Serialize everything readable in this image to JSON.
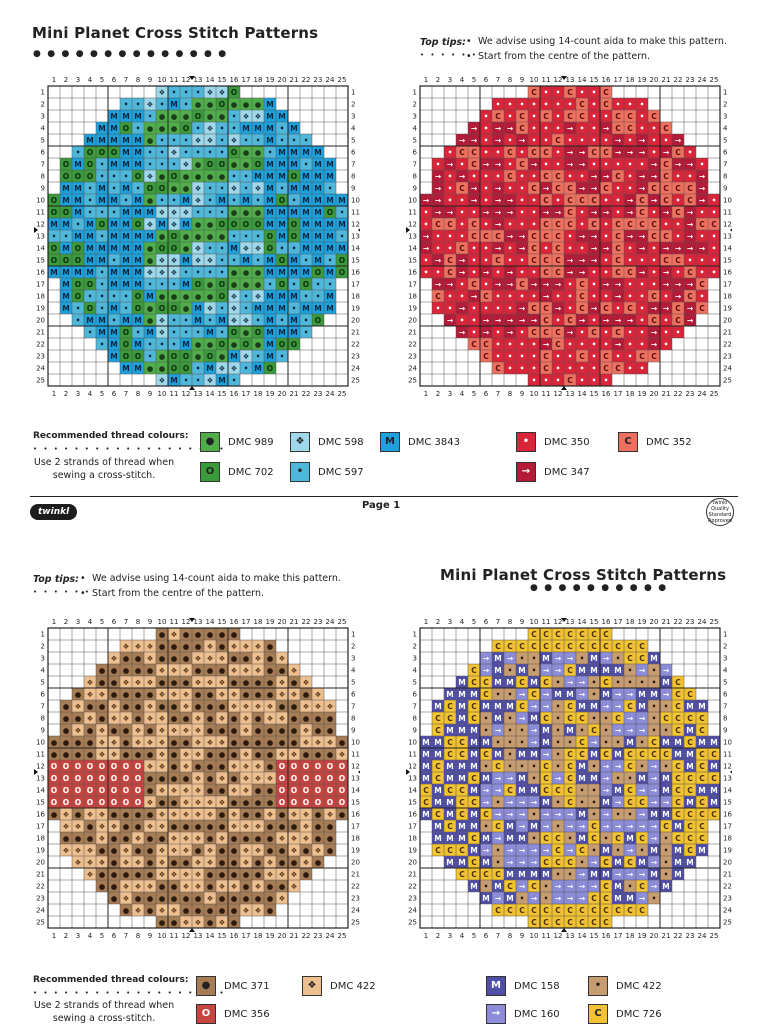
{
  "page1": {
    "title": "Mini Planet Cross Stitch Patterns",
    "tips": {
      "label": "Top tips:",
      "line1": "We advise using 14-count aida to make this pattern.",
      "line2": "Start from the centre of the pattern."
    },
    "earth_legend": {
      "heading": "Recommended thread colours:",
      "note": "Use 2 strands of thread when sewing a cross-stitch.",
      "items": [
        {
          "label": "DMC 989",
          "symbol": "●",
          "color": "#4fae4a"
        },
        {
          "label": "DMC 598",
          "symbol": "❖",
          "color": "#9fd8ea"
        },
        {
          "label": "DMC 3843",
          "symbol": "M",
          "color": "#1da1dc"
        },
        {
          "label": "DMC 702",
          "symbol": "O",
          "color": "#3a9a3c"
        },
        {
          "label": "DMC 597",
          "symbol": "•",
          "color": "#4fb7d9"
        }
      ]
    },
    "mars_legend": {
      "items": [
        {
          "label": "DMC 350",
          "symbol": "•",
          "color": "#d9253a"
        },
        {
          "label": "DMC 352",
          "symbol": "C",
          "color": "#f07060"
        },
        {
          "label": "DMC 347",
          "symbol": "→",
          "color": "#b31b36"
        }
      ]
    },
    "page_label": "Page 1",
    "logo": "twinkl",
    "badge": "twinkl Quality Standard Approved"
  },
  "page2": {
    "title": "Mini Planet Cross Stitch Patterns",
    "tips": {
      "label": "Top tips:",
      "line1": "We advise using 14-count aida to make this pattern.",
      "line2": "Start from the centre of the pattern."
    },
    "brown_legend": {
      "heading": "Recommended thread colours:",
      "note": "Use 2 strands of thread when sewing a cross-stitch.",
      "items": [
        {
          "label": "DMC 371",
          "symbol": "●",
          "color": "#a67c55"
        },
        {
          "label": "DMC 422",
          "symbol": "❖",
          "color": "#efc08f"
        },
        {
          "label": "DMC 356",
          "symbol": "O",
          "color": "#c74540"
        }
      ]
    },
    "purple_legend": {
      "items": [
        {
          "label": "DMC 158",
          "symbol": "M",
          "color": "#4f4fa8"
        },
        {
          "label": "DMC 422",
          "symbol": "•",
          "color": "#c79c70"
        },
        {
          "label": "DMC 160",
          "symbol": "→",
          "color": "#8c8cd8"
        },
        {
          "label": "DMC 726",
          "symbol": "C",
          "color": "#f2c231"
        }
      ]
    }
  },
  "grid": {
    "numbers": [
      "1",
      "2",
      "3",
      "4",
      "5",
      "6",
      "7",
      "8",
      "9",
      "10",
      "11",
      "12",
      "13",
      "14",
      "15",
      "16",
      "17",
      "18",
      "19",
      "20",
      "21",
      "22",
      "23",
      "24",
      "25"
    ]
  }
}
